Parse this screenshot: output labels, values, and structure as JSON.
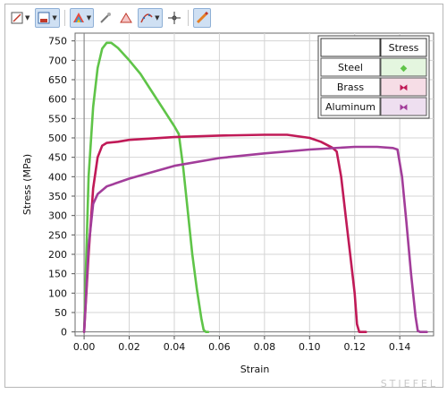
{
  "toolbar": {
    "buttons": [
      {
        "icon": "chart-type-icon",
        "has_dropdown": true,
        "active": false
      },
      {
        "icon": "save-icon",
        "has_dropdown": true,
        "active": true
      },
      {
        "icon": "color-palette-icon",
        "has_dropdown": true,
        "active": true
      },
      {
        "icon": "draw-tool-icon",
        "has_dropdown": false,
        "active": false
      },
      {
        "icon": "triangle-marker-icon",
        "has_dropdown": false,
        "active": false
      },
      {
        "icon": "curve-fit-icon",
        "has_dropdown": true,
        "active": true
      },
      {
        "icon": "crosshair-icon",
        "has_dropdown": false,
        "active": false
      },
      {
        "icon": "pencil-icon",
        "has_dropdown": false,
        "active": true
      }
    ]
  },
  "watermark": "STIEFEL",
  "chart_data": {
    "type": "line",
    "title": "",
    "xlabel": "Strain",
    "ylabel": "Stress (MPa)",
    "xlim": [
      -0.004,
      0.155
    ],
    "ylim": [
      -10,
      770
    ],
    "xticks": [
      0.0,
      0.02,
      0.04,
      0.06,
      0.08,
      0.1,
      0.12,
      0.14
    ],
    "xtick_labels": [
      "0.00",
      "0.02",
      "0.04",
      "0.06",
      "0.08",
      "0.10",
      "0.12",
      "0.14"
    ],
    "yticks": [
      0,
      50,
      100,
      150,
      200,
      250,
      300,
      350,
      400,
      450,
      500,
      550,
      600,
      650,
      700,
      750
    ],
    "grid": true,
    "legend": {
      "placement": "top-right",
      "header": "Stress",
      "entries": [
        {
          "name": "Steel",
          "marker": "◆",
          "cell_color": "#e4f6df",
          "marker_color": "#5fc448"
        },
        {
          "name": "Brass",
          "marker": "⧓",
          "cell_color": "#f6dde6",
          "marker_color": "#c01a57"
        },
        {
          "name": "Aluminum",
          "marker": "⧓",
          "cell_color": "#eedff0",
          "marker_color": "#a23d9a"
        }
      ]
    },
    "series": [
      {
        "name": "Steel",
        "color": "#5fc448",
        "x": [
          0.0,
          0.002,
          0.004,
          0.006,
          0.008,
          0.01,
          0.012,
          0.015,
          0.02,
          0.025,
          0.03,
          0.035,
          0.04,
          0.042,
          0.044,
          0.046,
          0.048,
          0.05,
          0.052,
          0.053,
          0.054,
          0.055
        ],
        "y": [
          0,
          400,
          580,
          680,
          730,
          745,
          745,
          732,
          700,
          665,
          620,
          575,
          530,
          510,
          420,
          310,
          200,
          110,
          35,
          5,
          0,
          0
        ]
      },
      {
        "name": "Brass",
        "color": "#c01a57",
        "x": [
          0.0,
          0.002,
          0.004,
          0.006,
          0.008,
          0.01,
          0.015,
          0.02,
          0.04,
          0.06,
          0.08,
          0.09,
          0.1,
          0.105,
          0.11,
          0.112,
          0.114,
          0.116,
          0.118,
          0.12,
          0.121,
          0.122,
          0.125
        ],
        "y": [
          0,
          200,
          370,
          450,
          480,
          487,
          490,
          495,
          502,
          506,
          508,
          508,
          500,
          490,
          475,
          465,
          400,
          300,
          200,
          100,
          20,
          0,
          0
        ]
      },
      {
        "name": "Aluminum",
        "color": "#a23d9a",
        "x": [
          0.0,
          0.002,
          0.004,
          0.006,
          0.01,
          0.02,
          0.04,
          0.06,
          0.08,
          0.1,
          0.12,
          0.13,
          0.137,
          0.139,
          0.141,
          0.143,
          0.145,
          0.147,
          0.148,
          0.149,
          0.152
        ],
        "y": [
          0,
          220,
          330,
          355,
          375,
          395,
          428,
          448,
          460,
          470,
          477,
          477,
          474,
          470,
          400,
          280,
          150,
          40,
          3,
          0,
          0
        ]
      }
    ]
  }
}
